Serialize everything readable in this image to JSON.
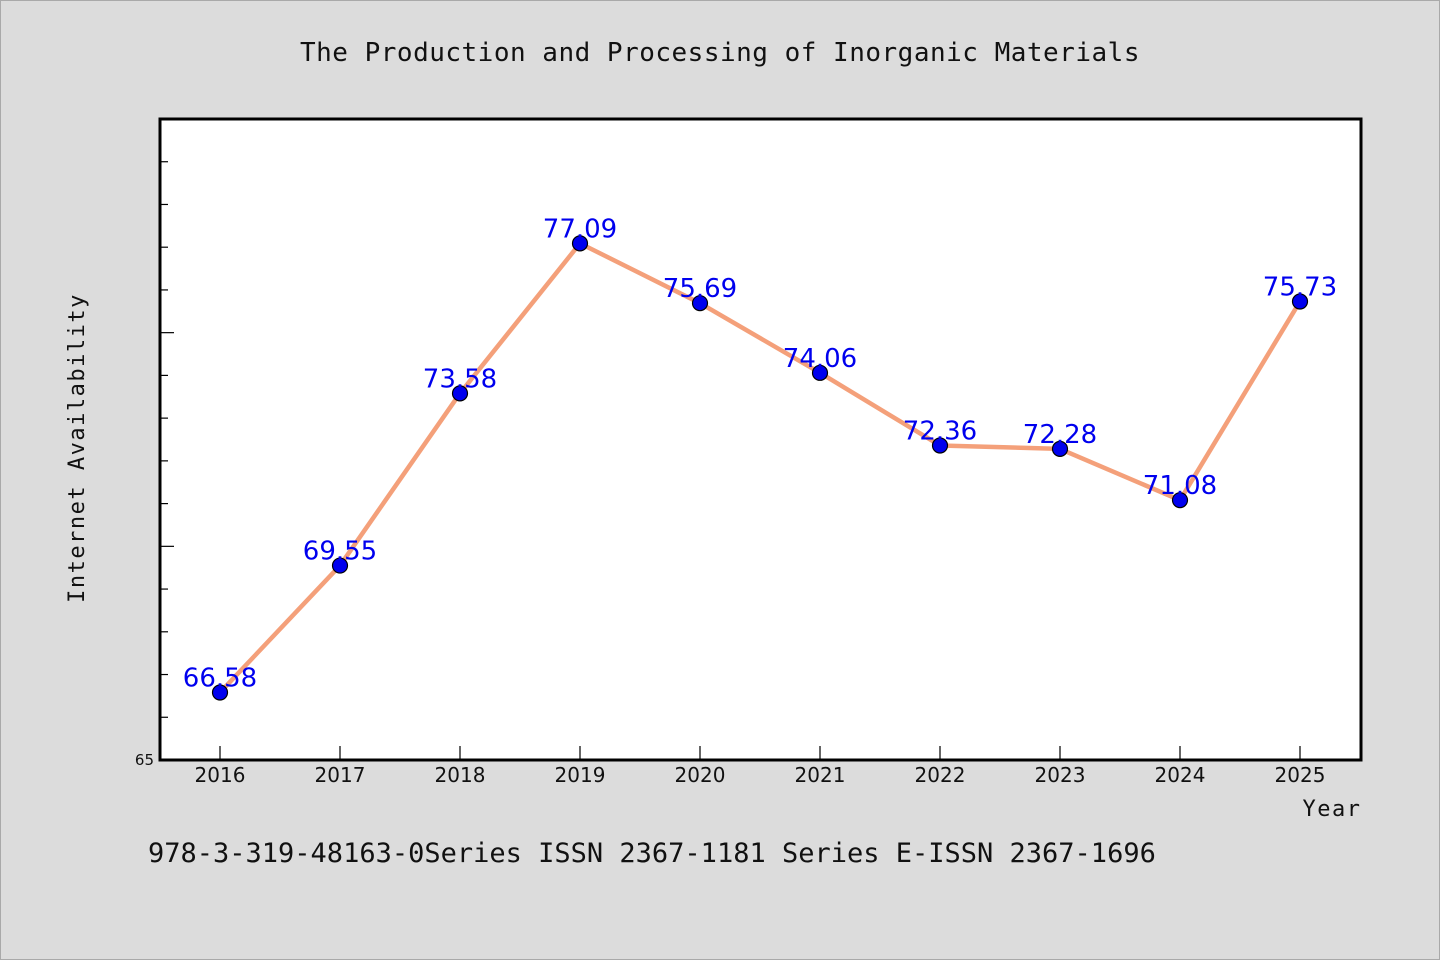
{
  "chart_data": {
    "type": "line",
    "title": "The Production and Processing of Inorganic Materials",
    "xlabel": "Year",
    "ylabel": "Internet Availability",
    "x": [
      "2016",
      "2017",
      "2018",
      "2019",
      "2020",
      "2021",
      "2022",
      "2023",
      "2024",
      "2025"
    ],
    "series": [
      {
        "values": [
          66.58,
          69.55,
          73.58,
          77.09,
          75.69,
          74.06,
          72.36,
          72.28,
          71.08,
          75.73
        ],
        "line_color": "#f4a07a",
        "marker_color": "#0000ee"
      }
    ],
    "data_labels": [
      "66.58",
      "69.55",
      "73.58",
      "77.09",
      "75.69",
      "74.06",
      "72.36",
      "72.28",
      "71.08",
      "75.73"
    ],
    "ylim": [
      65,
      80
    ],
    "y_tick_labels": [
      "65"
    ],
    "grid": false,
    "legend": "none"
  },
  "footnote": "978-3-319-48163-0Series ISSN 2367-1181 Series E-ISSN 2367-1696",
  "colors": {
    "background": "#dcdcdc",
    "plot_background": "#ffffff",
    "label_color": "#0000ee"
  }
}
